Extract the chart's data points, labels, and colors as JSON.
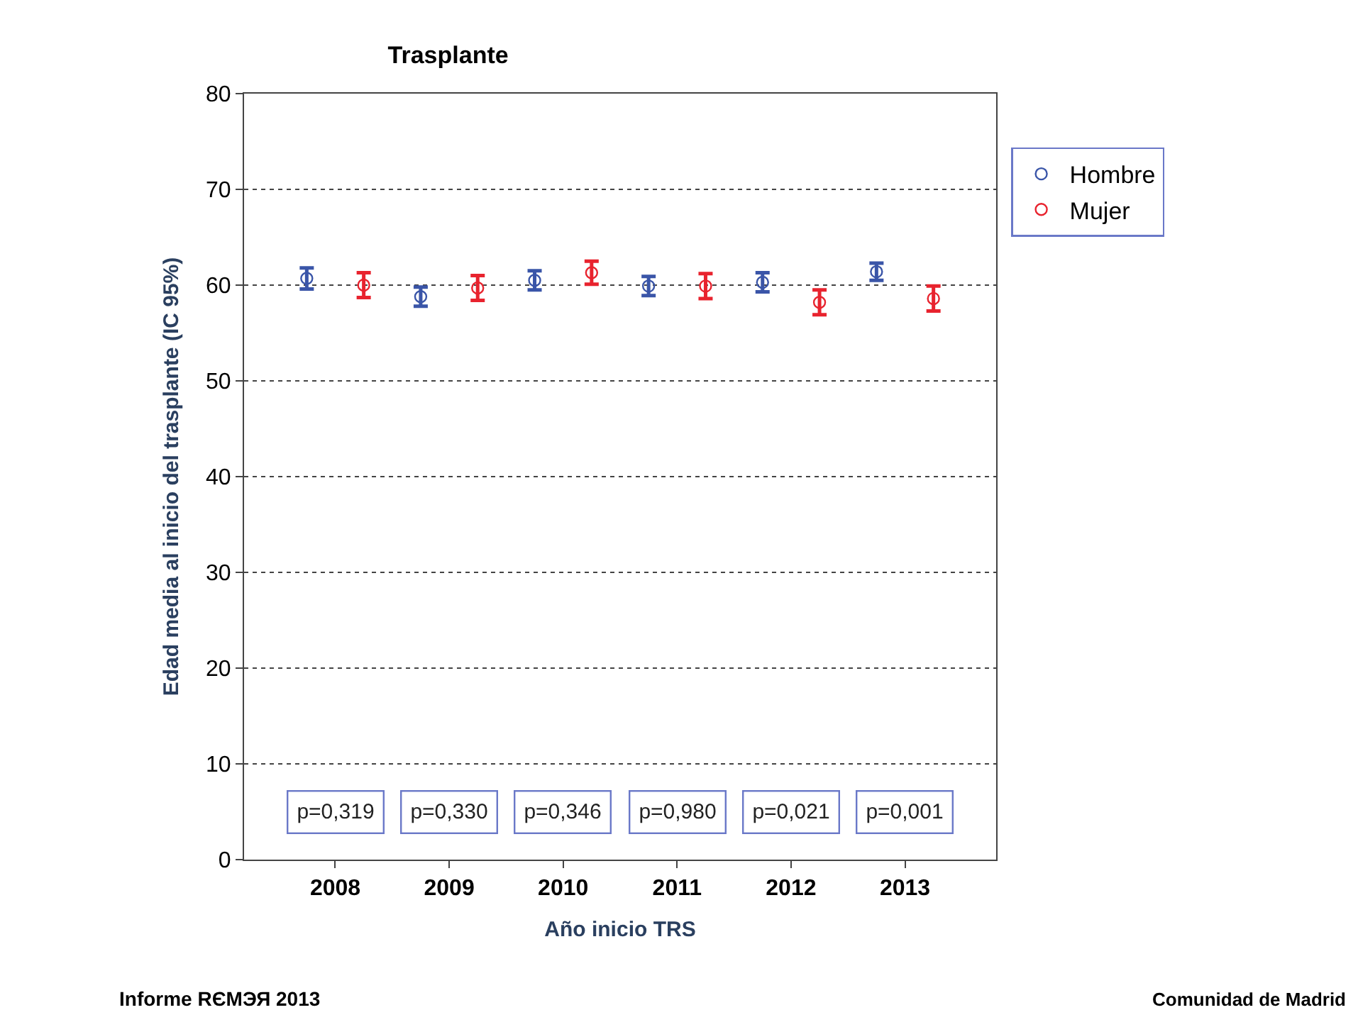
{
  "chart_data": {
    "type": "scatter",
    "title": "Trasplante",
    "xlabel": "Año inicio TRS",
    "ylabel": "Edad media al inicio del trasplante (IC 95%)",
    "categories": [
      "2008",
      "2009",
      "2010",
      "2011",
      "2012",
      "2013"
    ],
    "series": [
      {
        "name": "Hombre",
        "color": "#3a55a8",
        "values": [
          60.7,
          58.8,
          60.5,
          59.9,
          60.3,
          61.4
        ],
        "errors": [
          1.1,
          1.0,
          1.0,
          1.0,
          1.0,
          0.9
        ]
      },
      {
        "name": "Mujer",
        "color": "#e8232e",
        "values": [
          60.0,
          59.7,
          61.3,
          59.9,
          58.2,
          58.6
        ],
        "errors": [
          1.3,
          1.3,
          1.2,
          1.3,
          1.3,
          1.3
        ]
      }
    ],
    "ylim": [
      0,
      80
    ],
    "yticks": [
      0,
      10,
      20,
      30,
      40,
      50,
      60,
      70,
      80
    ],
    "grid": "y",
    "legend": "top right",
    "marker": "circle",
    "annotations": [
      "p=0,319",
      "p=0,330",
      "p=0,346",
      "p=0,980",
      "p=0,021",
      "p=0,001",
      "Informe RЄМЭЯ 2013",
      "Comunidad de Madrid"
    ]
  }
}
